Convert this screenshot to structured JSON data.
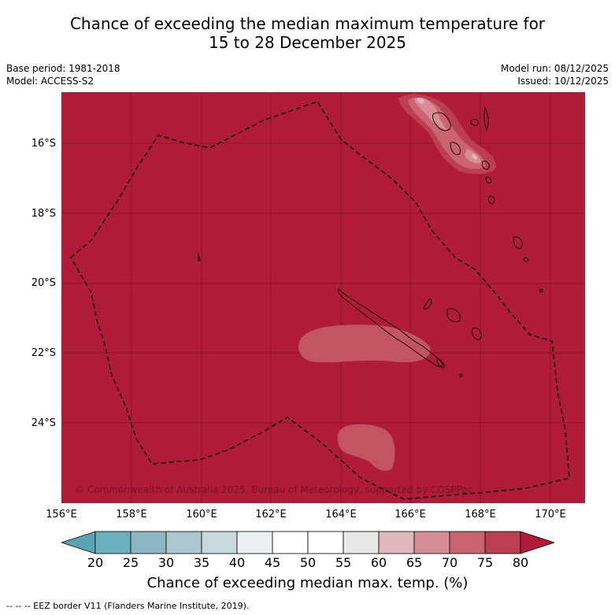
{
  "title_line1": "Chance of exceeding the median maximum temperature for",
  "title_line2": "15 to 28 December 2025",
  "base_period": "Base period: 1981-2018",
  "model": "Model: ACCESS-S2",
  "model_run": "Model run: 08/12/2025",
  "issued": "Issued: 10/12/2025",
  "copyright": "© Commonwealth of Australia 2025, Bureau of Meteorology, supported by COSPPac",
  "lat_labels": [
    "16°S",
    "18°S",
    "20°S",
    "22°S",
    "24°S"
  ],
  "lon_labels": [
    "156°E",
    "158°E",
    "160°E",
    "162°E",
    "164°E",
    "166°E",
    "168°E",
    "170°E"
  ],
  "colorbar": {
    "ticks": [
      "20",
      "25",
      "30",
      "35",
      "40",
      "45",
      "50",
      "55",
      "60",
      "65",
      "70",
      "75",
      "80"
    ],
    "colors": [
      "#5aa3b2",
      "#6bb0bf",
      "#8bb6c2",
      "#a9c7cd",
      "#c7d9dd",
      "#eaf0f1",
      "#ffffff",
      "#ffffff",
      "#e8e8e8",
      "#dfb9be",
      "#d68d96",
      "#c96470",
      "#bb3f50",
      "#b01c38"
    ],
    "label": "Chance of exceeding median max. temp. (%)"
  },
  "background_value_color": "#b01c38",
  "legend_footer": "-- -- -- EEZ border V11 (Flanders Marine Institute, 2019)."
}
